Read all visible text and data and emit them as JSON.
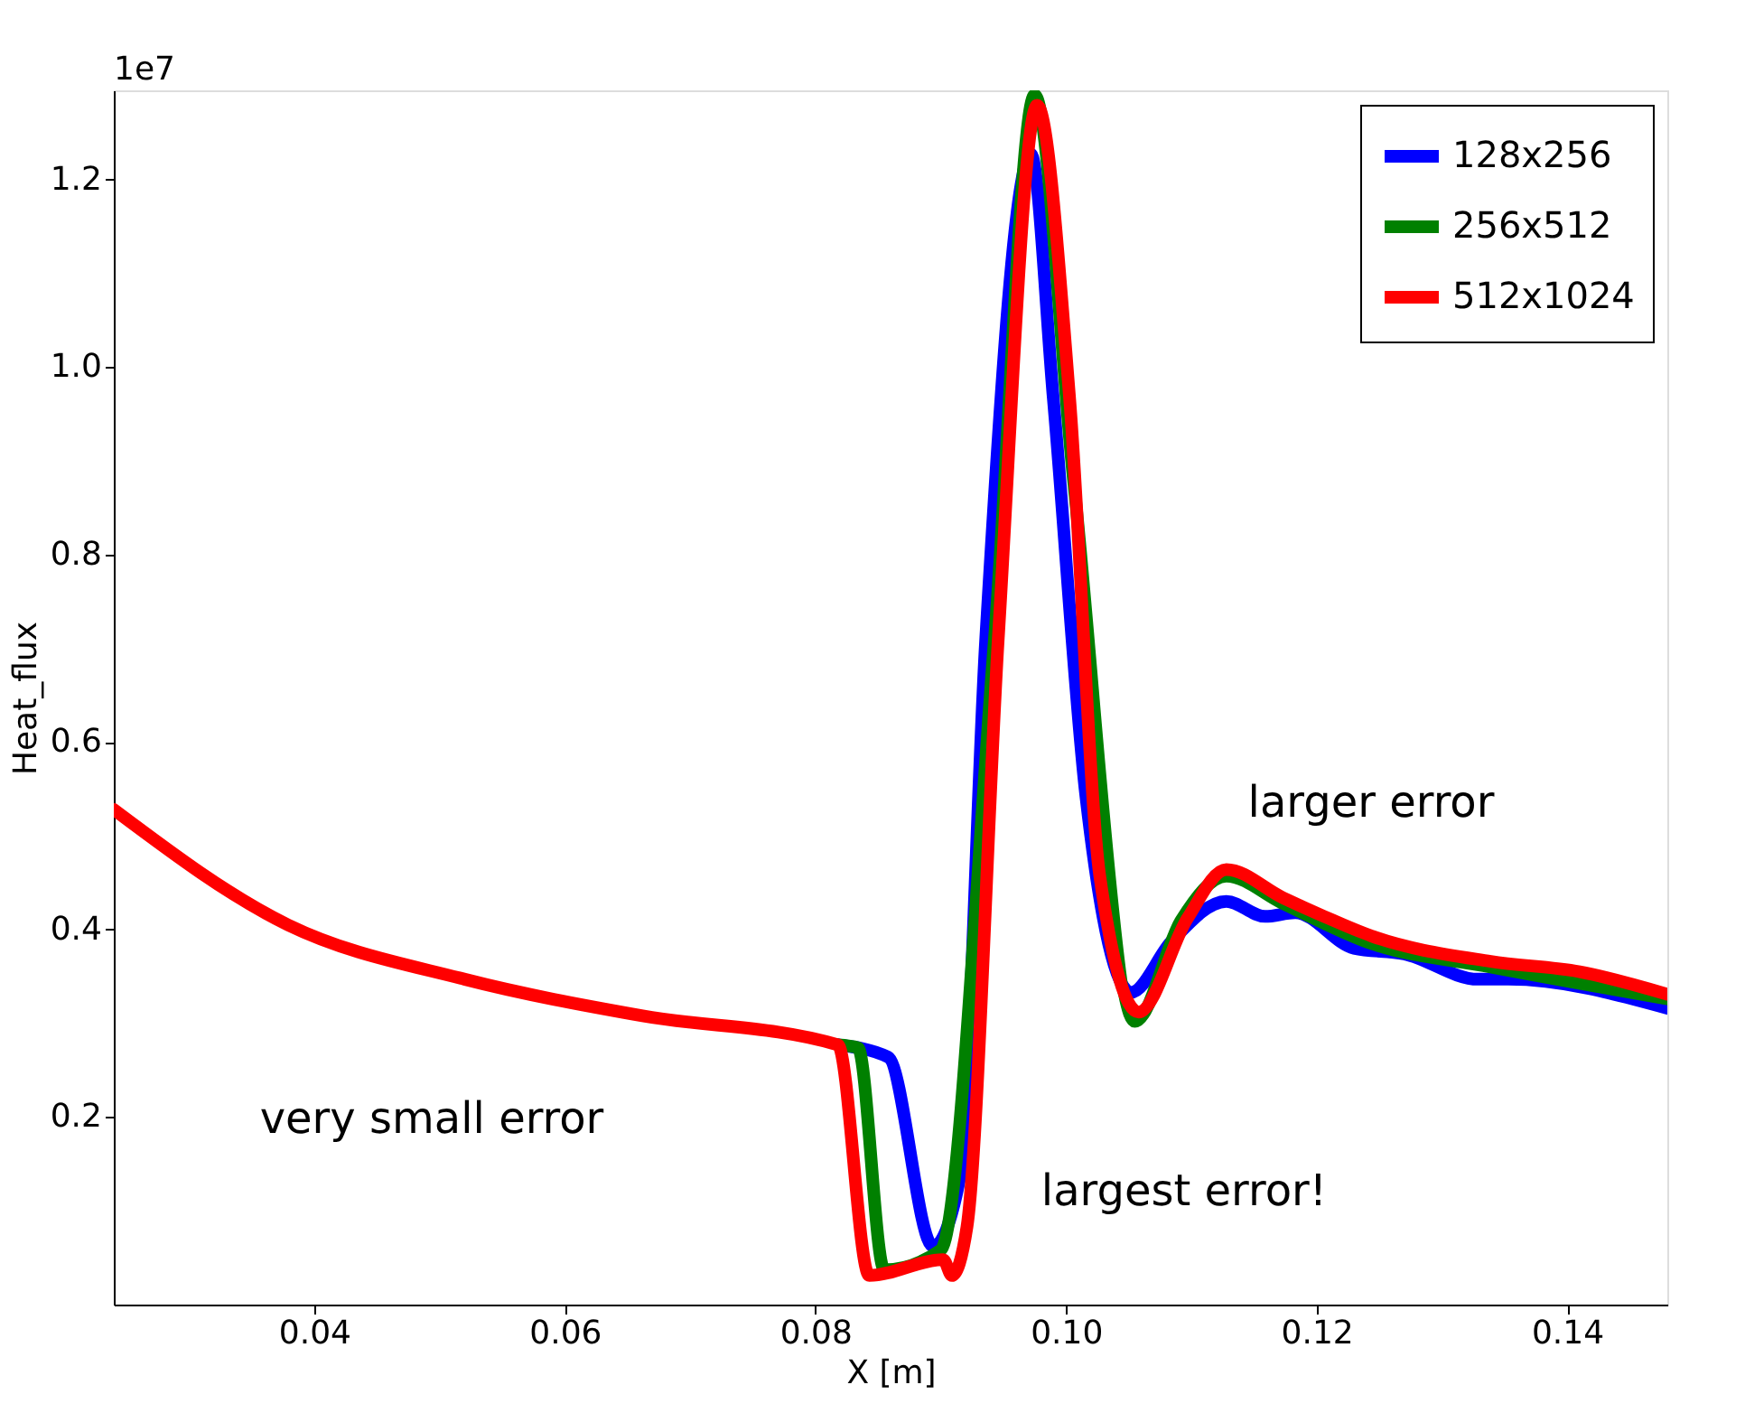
{
  "chart_data": {
    "type": "line",
    "xlabel": "X [m]",
    "ylabel": "Heat_flux",
    "xlim": [
      0.024,
      0.148
    ],
    "ylim": [
      0,
      1.295
    ],
    "xticks": [
      {
        "value": 0.04,
        "label": "0.04"
      },
      {
        "value": 0.06,
        "label": "0.06"
      },
      {
        "value": 0.08,
        "label": "0.08"
      },
      {
        "value": 0.1,
        "label": "0.10"
      },
      {
        "value": 0.12,
        "label": "0.12"
      },
      {
        "value": 0.14,
        "label": "0.14"
      }
    ],
    "yticks": [
      0.2,
      0.4,
      0.6,
      0.8,
      {
        "value": 1.0,
        "label": "1.0"
      },
      1.2
    ],
    "grid": false,
    "legend": "top right",
    "marker": "none",
    "line_style": "solid",
    "annotations": [
      "1e7",
      "very small error",
      "largest error!",
      "larger error"
    ],
    "series": [
      {
        "name": "128x256",
        "color": "#0000ff",
        "x": [
          0.0818,
          0.0858,
          0.0894,
          0.0915,
          0.0936,
          0.0972,
          0.099,
          0.1016,
          0.1052,
          0.1084,
          0.1128,
          0.1159,
          0.1183,
          0.123,
          0.127,
          0.1329,
          0.1353,
          0.148
        ],
        "values": [
          0.277,
          0.264,
          0.062,
          0.133,
          0.711,
          1.227,
          0.965,
          0.541,
          0.333,
          0.387,
          0.43,
          0.414,
          0.418,
          0.38,
          0.374,
          0.347,
          0.347,
          0.316
        ]
      },
      {
        "name": "256x512",
        "color": "#008000",
        "x": [
          0.0818,
          0.0834,
          0.0855,
          0.09,
          0.0943,
          0.0975,
          0.1006,
          0.1055,
          0.1092,
          0.1128,
          0.1173,
          0.1244,
          0.1339,
          0.148
        ],
        "values": [
          0.277,
          0.274,
          0.037,
          0.058,
          0.711,
          1.29,
          0.88,
          0.302,
          0.41,
          0.457,
          0.428,
          0.385,
          0.36,
          0.326
        ]
      },
      {
        "name": "512x1024",
        "color": "#ff0000",
        "x": [
          0.024,
          0.0379,
          0.052,
          0.0662,
          0.0818,
          0.0843,
          0.0902,
          0.0909,
          0.0921,
          0.0946,
          0.0977,
          0.1003,
          0.1027,
          0.1058,
          0.1097,
          0.1128,
          0.1173,
          0.1206,
          0.1244,
          0.1339,
          0.141,
          0.148
        ],
        "values": [
          0.528,
          0.405,
          0.347,
          0.308,
          0.277,
          0.031,
          0.048,
          0.031,
          0.083,
          0.711,
          1.279,
          0.965,
          0.457,
          0.312,
          0.412,
          0.464,
          0.434,
          0.414,
          0.393,
          0.366,
          0.355,
          0.331
        ]
      }
    ]
  }
}
